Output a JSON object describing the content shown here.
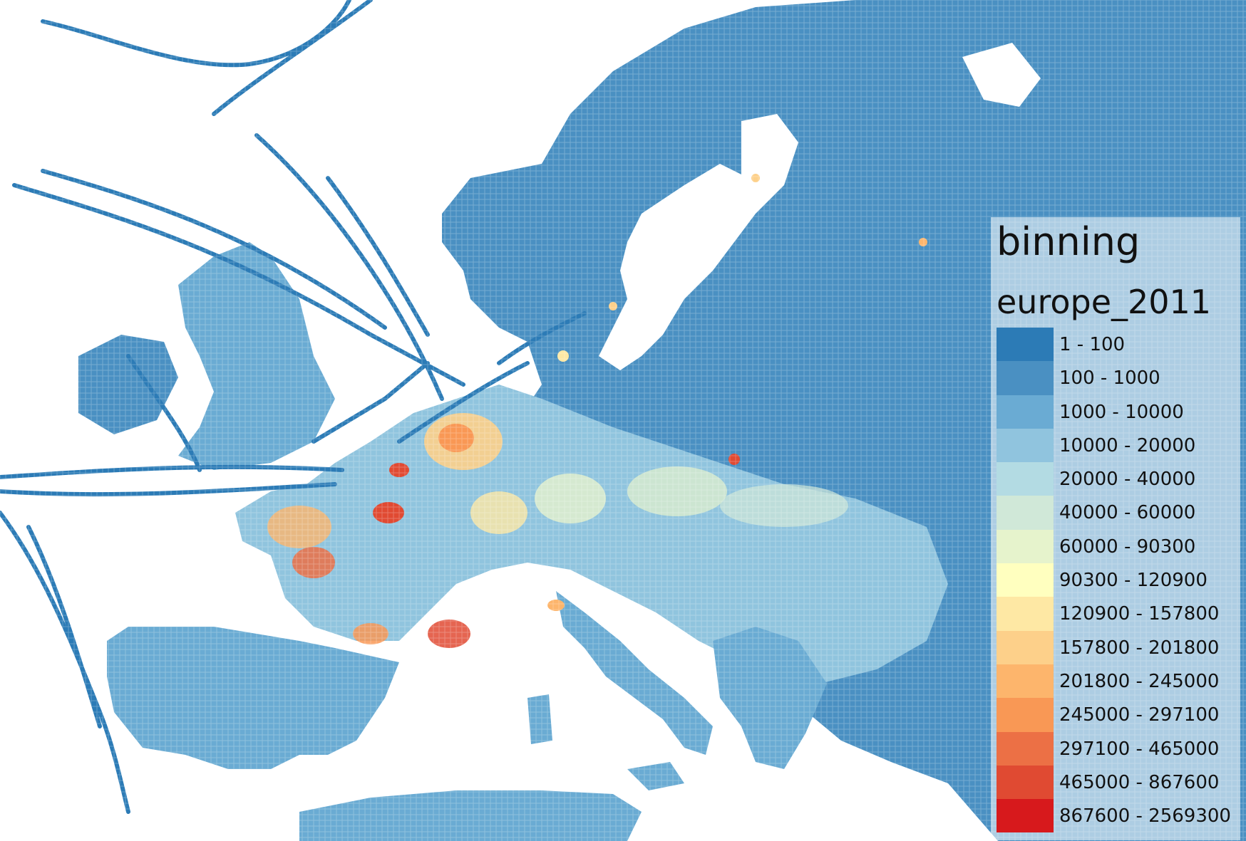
{
  "legend": {
    "title": "binning",
    "subtitle": "europe_2011",
    "items": [
      {
        "label": "1 - 100",
        "color": "#2c7bb6"
      },
      {
        "label": "100 - 1000",
        "color": "#4a90c2"
      },
      {
        "label": "1000 - 10000",
        "color": "#6aabd3"
      },
      {
        "label": "10000 - 20000",
        "color": "#90c4de"
      },
      {
        "label": "20000 - 40000",
        "color": "#b3dbe3"
      },
      {
        "label": "40000 - 60000",
        "color": "#d0e8d8"
      },
      {
        "label": "60000 - 90300",
        "color": "#e6f3cc"
      },
      {
        "label": "90300 - 120900",
        "color": "#ffffbf"
      },
      {
        "label": "120900 - 157800",
        "color": "#fee8a4"
      },
      {
        "label": "157800 - 201800",
        "color": "#fdd08a"
      },
      {
        "label": "201800 - 245000",
        "color": "#fdb56c"
      },
      {
        "label": "245000 - 297100",
        "color": "#f99855"
      },
      {
        "label": "297100 - 465000",
        "color": "#ec7045"
      },
      {
        "label": "465000 - 867600",
        "color": "#e04a32"
      },
      {
        "label": "867600 - 2569300",
        "color": "#d7191c"
      }
    ]
  }
}
